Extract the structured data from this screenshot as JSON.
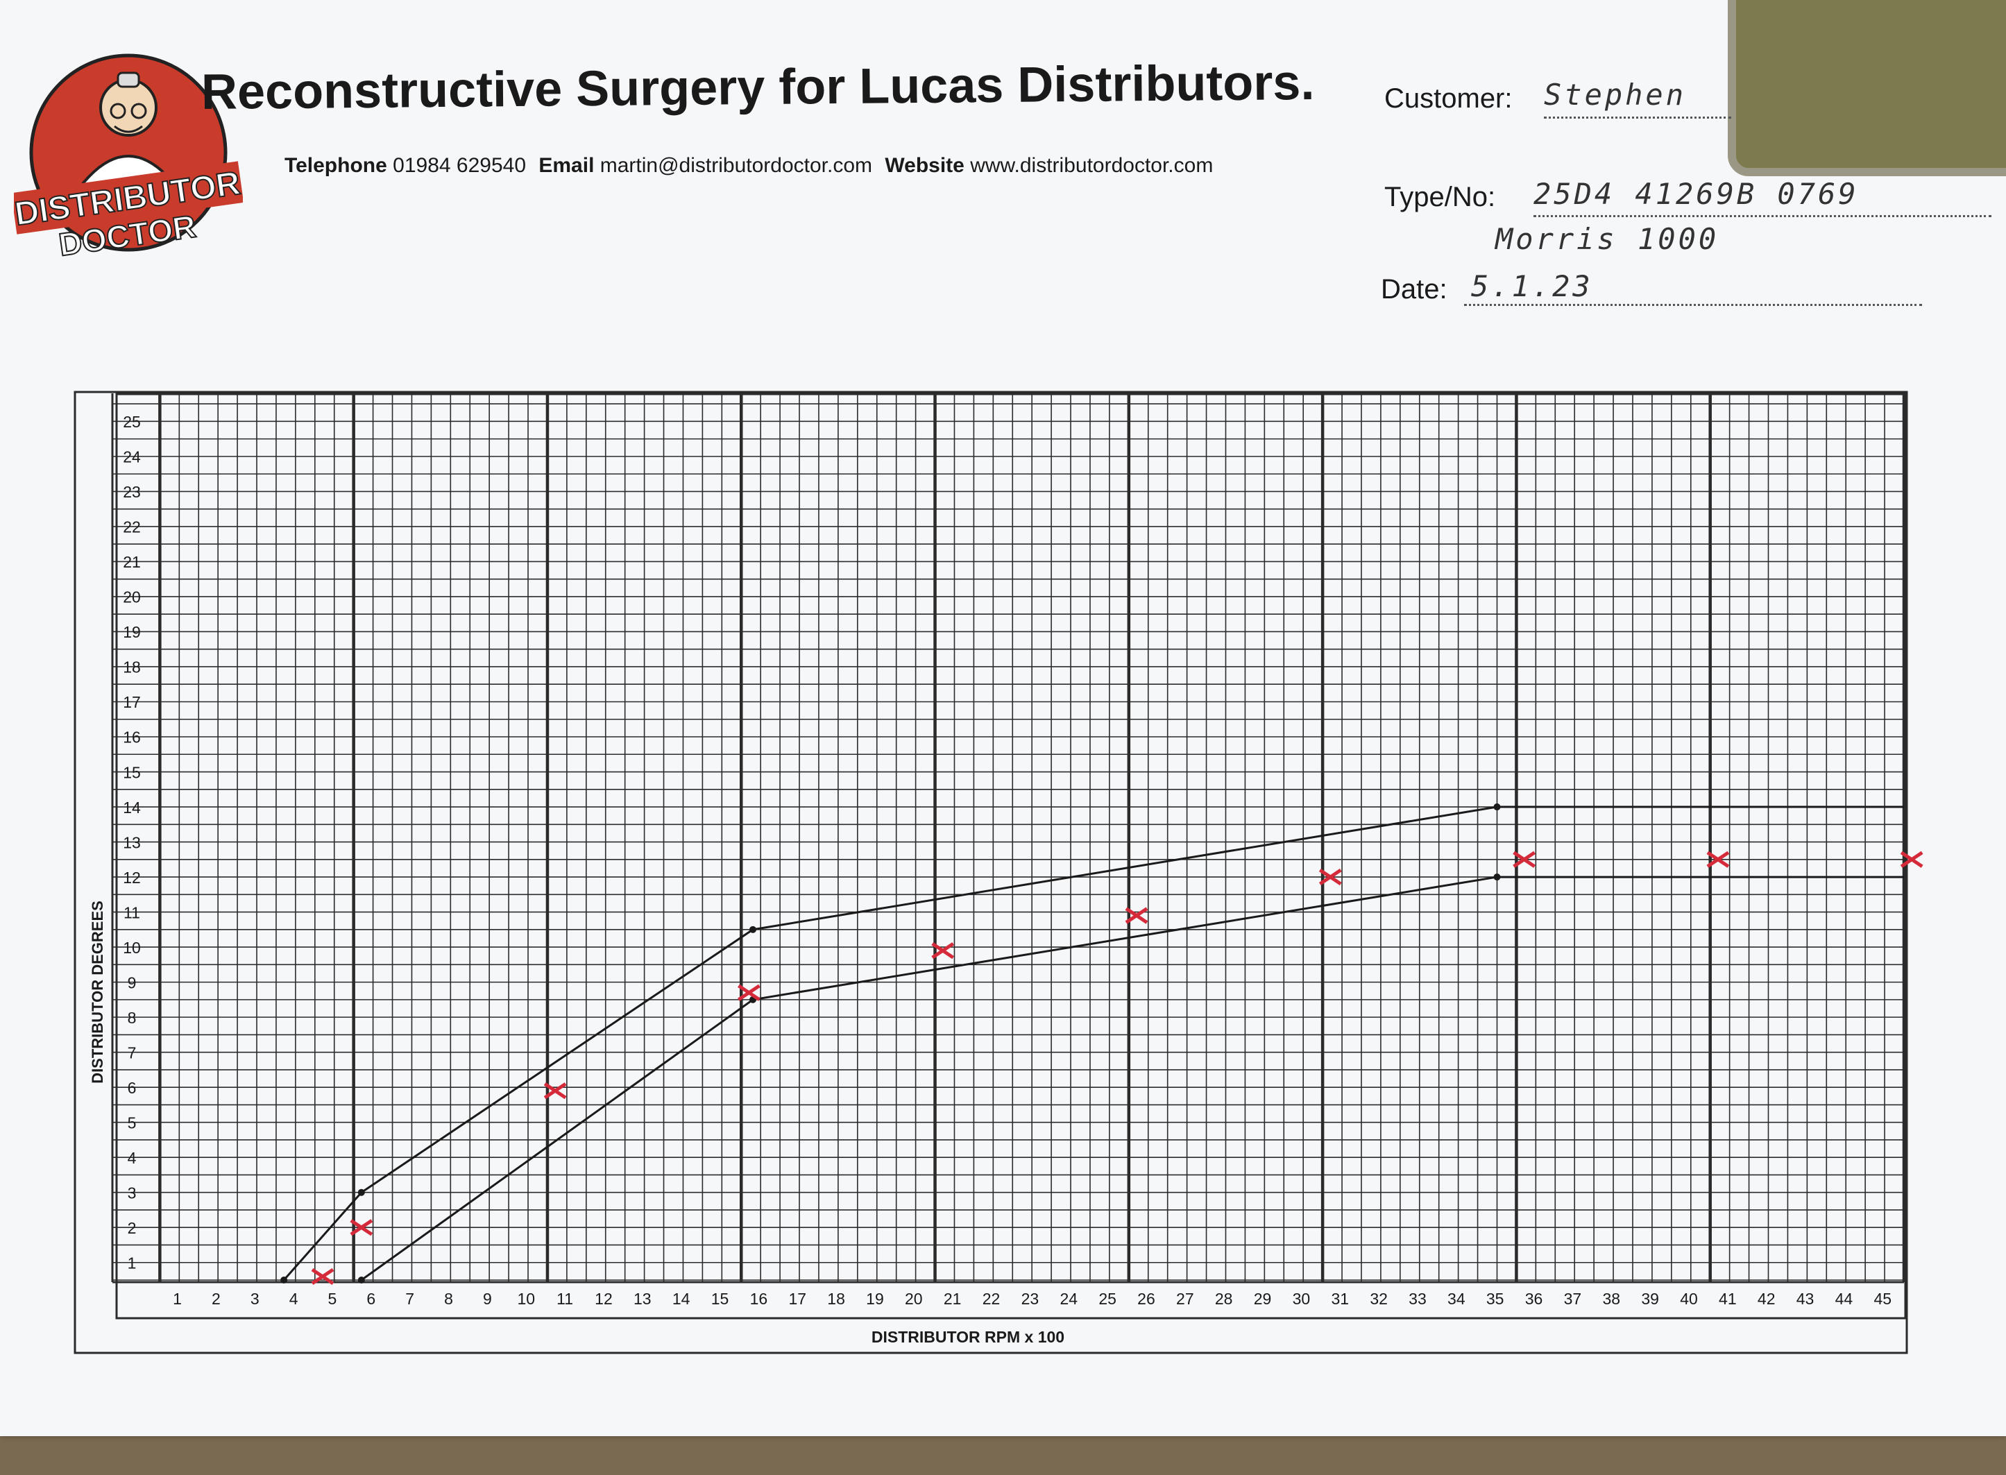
{
  "header": {
    "title": "Reconstructive Surgery for Lucas Distributors.",
    "telephone_label": "Telephone",
    "telephone": "01984 629540",
    "email_label": "Email",
    "email": "martin@distributordoctor.com",
    "website_label": "Website",
    "website": "www.distributordoctor.com",
    "logo_line1": "DISTRIBUTOR",
    "logo_line2": "DOCTOR"
  },
  "form": {
    "customer_label": "Customer:",
    "customer_value": "Stephen",
    "type_label": "Type/No:",
    "type_value": "25D4   41269B 0769",
    "type_value_line2": "Morris 1000",
    "date_label": "Date:",
    "date_value": "5.1.23"
  },
  "colors": {
    "grid": "#2b2b2b",
    "curve": "#1a1a1a",
    "marks": "#d42a3a"
  },
  "chart_data": {
    "type": "line",
    "xlabel": "DISTRIBUTOR RPM x 100",
    "ylabel": "DISTRIBUTOR DEGREES",
    "xlim": [
      0,
      45
    ],
    "ylim": [
      0,
      25
    ],
    "x_ticks": [
      1,
      2,
      3,
      4,
      5,
      6,
      7,
      8,
      9,
      10,
      11,
      12,
      13,
      14,
      15,
      16,
      17,
      18,
      19,
      20,
      21,
      22,
      23,
      24,
      25,
      26,
      27,
      28,
      29,
      30,
      31,
      32,
      33,
      34,
      35,
      36,
      37,
      38,
      39,
      40,
      41,
      42,
      43,
      44,
      45
    ],
    "y_ticks": [
      1,
      2,
      3,
      4,
      5,
      6,
      7,
      8,
      9,
      10,
      11,
      12,
      13,
      14,
      15,
      16,
      17,
      18,
      19,
      20,
      21,
      22,
      23,
      24,
      25
    ],
    "grid": true,
    "series": [
      {
        "kind": "line",
        "points": [
          [
            3.2,
            0
          ],
          [
            5.2,
            2.5
          ],
          [
            15.3,
            10
          ],
          [
            34.5,
            13.5
          ],
          [
            45,
            13.5
          ]
        ]
      },
      {
        "kind": "line",
        "points": [
          [
            5.2,
            0
          ],
          [
            15.3,
            8
          ],
          [
            34.5,
            11.5
          ],
          [
            45,
            11.5
          ]
        ]
      },
      {
        "kind": "marks",
        "points": [
          [
            4.2,
            0.1
          ],
          [
            5.2,
            1.5
          ],
          [
            10.2,
            5.4
          ],
          [
            15.2,
            8.2
          ],
          [
            20.2,
            9.4
          ],
          [
            25.2,
            10.4
          ],
          [
            30.2,
            11.5
          ],
          [
            35.2,
            12
          ],
          [
            40.2,
            12
          ],
          [
            45.2,
            12
          ]
        ]
      }
    ]
  }
}
